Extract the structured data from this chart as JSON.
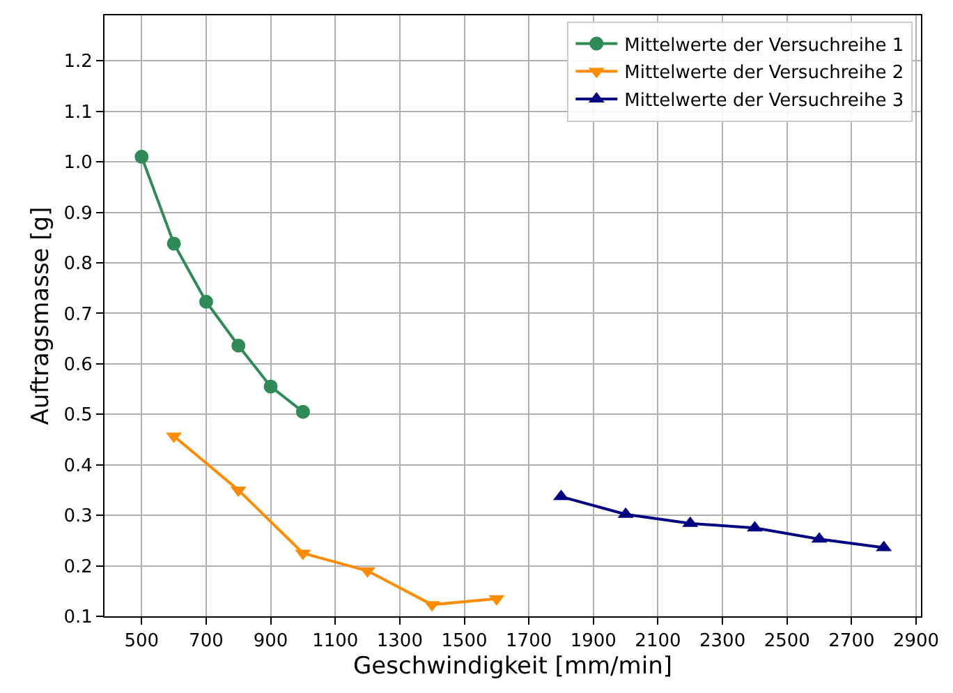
{
  "chart_data": {
    "type": "line",
    "xlabel": "Geschwindigkeit [mm/min]",
    "ylabel": "Auftragsmasse [g]",
    "series": [
      {
        "name": "Mittelwerte der Versuchreihe 1",
        "color": "#2e8b57",
        "marker": "circle",
        "x": [
          500,
          600,
          700,
          800,
          900,
          1000
        ],
        "values": [
          1.01,
          0.838,
          0.723,
          0.636,
          0.555,
          0.505
        ]
      },
      {
        "name": "Mittelwerte der Versuchreihe 2",
        "color": "#ff8c00",
        "marker": "triangle-down",
        "x": [
          600,
          800,
          1000,
          1200,
          1400,
          1600
        ],
        "values": [
          0.457,
          0.35,
          0.225,
          0.19,
          0.123,
          0.135
        ]
      },
      {
        "name": "Mittelwerte der Versuchreihe 3",
        "color": "#000080",
        "marker": "triangle",
        "x": [
          1800,
          2000,
          2200,
          2400,
          2600,
          2800
        ],
        "values": [
          0.337,
          0.302,
          0.284,
          0.275,
          0.253,
          0.236
        ]
      }
    ],
    "xlim": [
      385,
      2915
    ],
    "xticks": [
      500,
      700,
      900,
      1100,
      1300,
      1500,
      1700,
      1900,
      2100,
      2300,
      2500,
      2700,
      2900
    ],
    "ylim": [
      0.1,
      1.29
    ],
    "yticks": [
      {
        "value": 0.1,
        "label": "0.1"
      },
      {
        "value": 0.2,
        "label": "0.2"
      },
      {
        "value": 0.3,
        "label": "0.3"
      },
      {
        "value": 0.4,
        "label": "0.4"
      },
      {
        "value": 0.5,
        "label": "0.5"
      },
      {
        "value": 0.6,
        "label": "0.6"
      },
      {
        "value": 0.7,
        "label": "0.7"
      },
      {
        "value": 0.8,
        "label": "0.8"
      },
      {
        "value": 0.9,
        "label": "0.9"
      },
      {
        "value": 1.0,
        "label": "1.0"
      },
      {
        "value": 1.1,
        "label": "1.1"
      },
      {
        "value": 1.2,
        "label": "1.2"
      }
    ],
    "grid": true,
    "legend": "top right",
    "line_style": "solid"
  }
}
